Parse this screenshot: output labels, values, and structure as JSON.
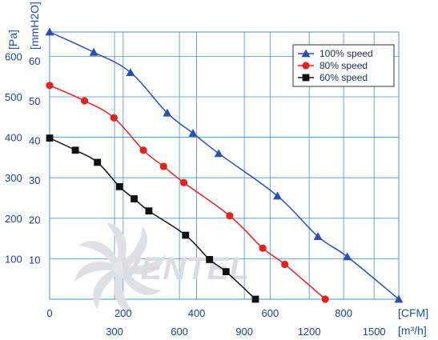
{
  "chart_data": {
    "type": "line",
    "title": "",
    "x_axes": [
      {
        "unit_label": "[CFM]",
        "ticks": [
          "0",
          "200",
          "400",
          "600",
          "800"
        ],
        "range": [
          0,
          950
        ]
      },
      {
        "unit_label": "[m³/h]",
        "ticks": [
          "300",
          "600",
          "900",
          "1200",
          "1500"
        ],
        "range": [
          0,
          1614
        ]
      }
    ],
    "y_axes": [
      {
        "unit_label": "[Pa]",
        "ticks": [
          "100",
          "200",
          "300",
          "400",
          "500",
          "600"
        ],
        "range": [
          0,
          660
        ]
      },
      {
        "unit_label": "[mmH2O]",
        "ticks": [
          "10",
          "20",
          "30",
          "40",
          "50",
          "60"
        ],
        "range": [
          0,
          67.3
        ]
      }
    ],
    "grid": true,
    "legend_position": "top-right",
    "series": [
      {
        "name": "100%  speed",
        "color": "#2b4fb0",
        "marker": "triangle",
        "x": [
          0,
          120,
          220,
          320,
          390,
          460,
          620,
          730,
          810,
          950
        ],
        "y": [
          660,
          610,
          560,
          460,
          410,
          360,
          255,
          155,
          105,
          0
        ]
      },
      {
        "name": "80%  speed",
        "color": "#e0231e",
        "marker": "circle",
        "x": [
          0,
          95,
          175,
          255,
          310,
          365,
          490,
          580,
          640,
          750
        ],
        "y": [
          528,
          490,
          448,
          368,
          328,
          288,
          206,
          126,
          86,
          0
        ]
      },
      {
        "name": "60%  speed",
        "color": "#111111",
        "marker": "square",
        "x": [
          0,
          70,
          130,
          190,
          230,
          270,
          370,
          435,
          480,
          560
        ],
        "y": [
          398,
          368,
          338,
          278,
          248,
          218,
          158,
          98,
          68,
          0
        ]
      }
    ]
  },
  "watermark": {
    "text": "VENTEL"
  }
}
